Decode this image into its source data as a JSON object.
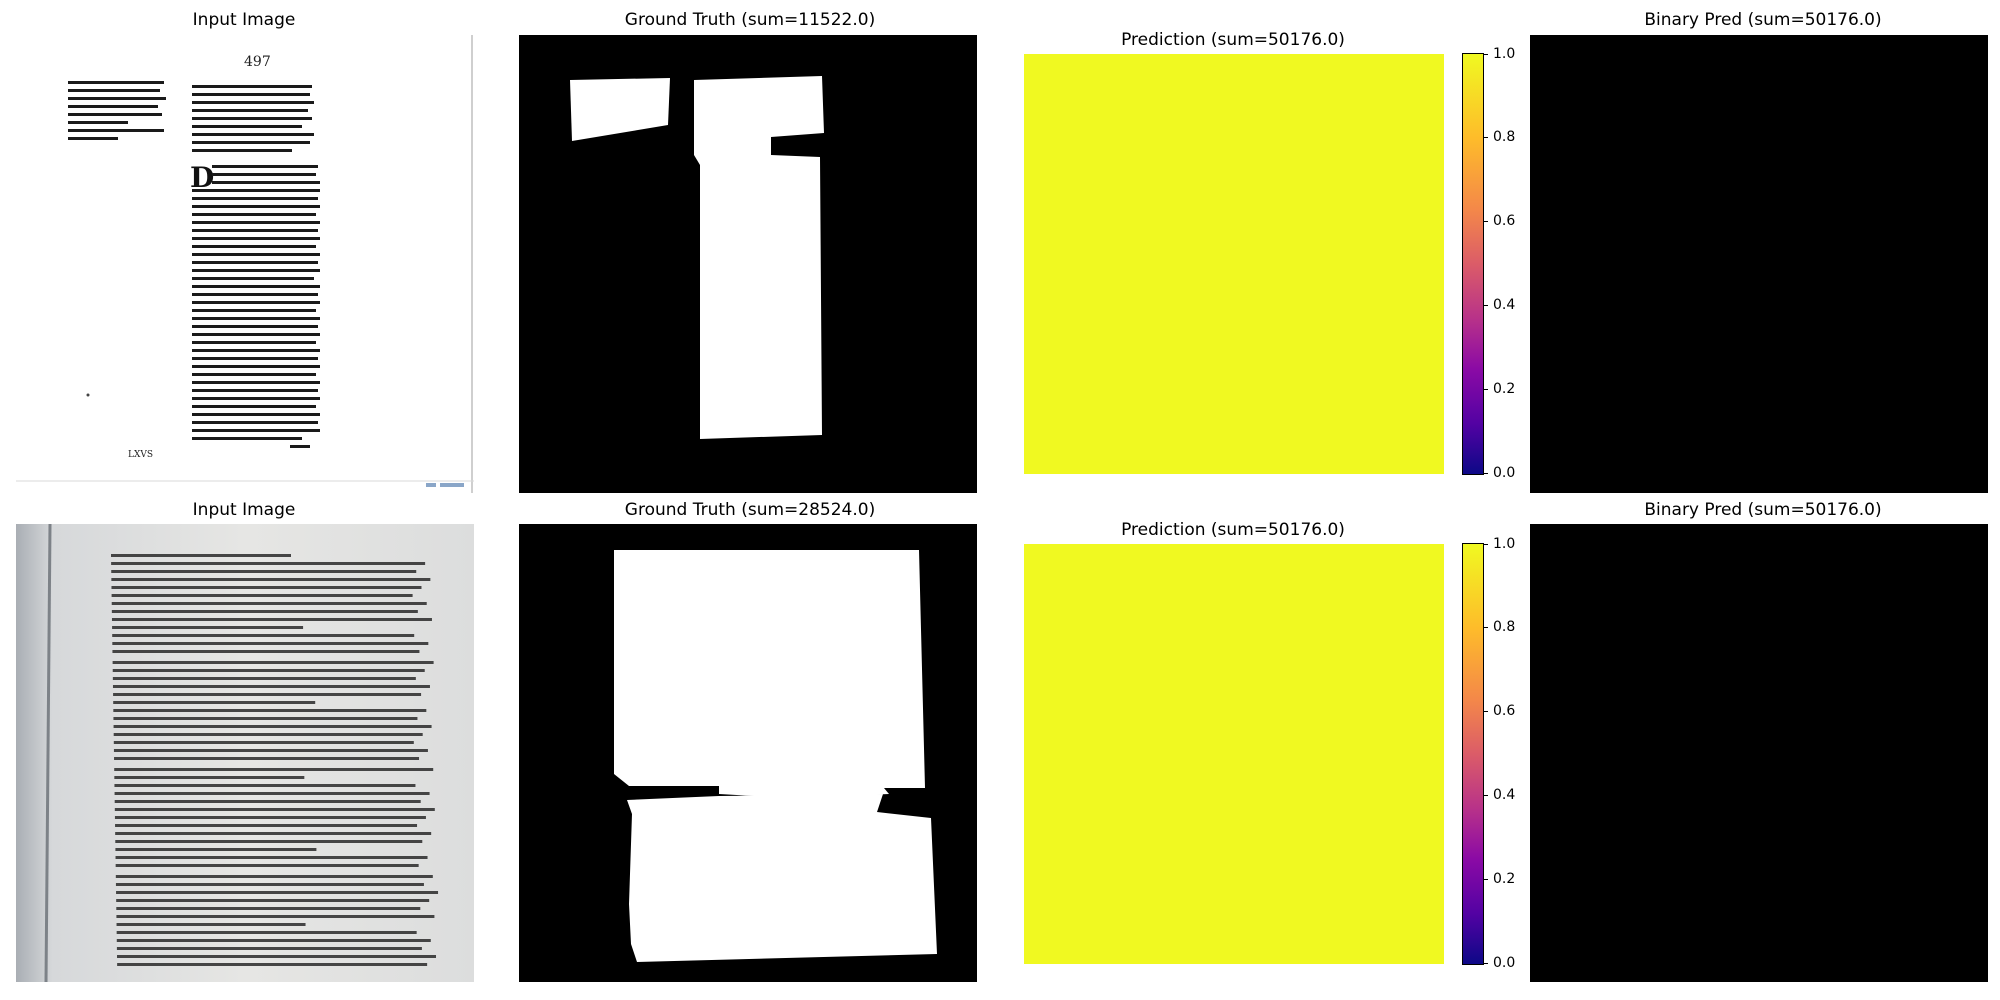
{
  "rows": [
    {
      "input_title": "Input Image",
      "gt_title": "Ground Truth (sum=11522.0)",
      "pred_title": "Prediction (sum=50176.0)",
      "bin_title": "Binary Pred (sum=50176.0)",
      "doc_number": "497",
      "doc_footer": "LXVS",
      "doc_initial": "D"
    },
    {
      "input_title": "Input Image",
      "gt_title": "Ground Truth (sum=28524.0)",
      "pred_title": "Prediction (sum=50176.0)",
      "bin_title": "Binary Pred (sum=50176.0)"
    }
  ],
  "colorbar": {
    "ticks": [
      "0.0",
      "0.2",
      "0.4",
      "0.6",
      "0.8",
      "1.0"
    ],
    "colormap": "plasma"
  },
  "colors": {
    "prediction_fill": "#f0f921",
    "mask_foreground": "#ffffff",
    "mask_background": "#000000"
  }
}
